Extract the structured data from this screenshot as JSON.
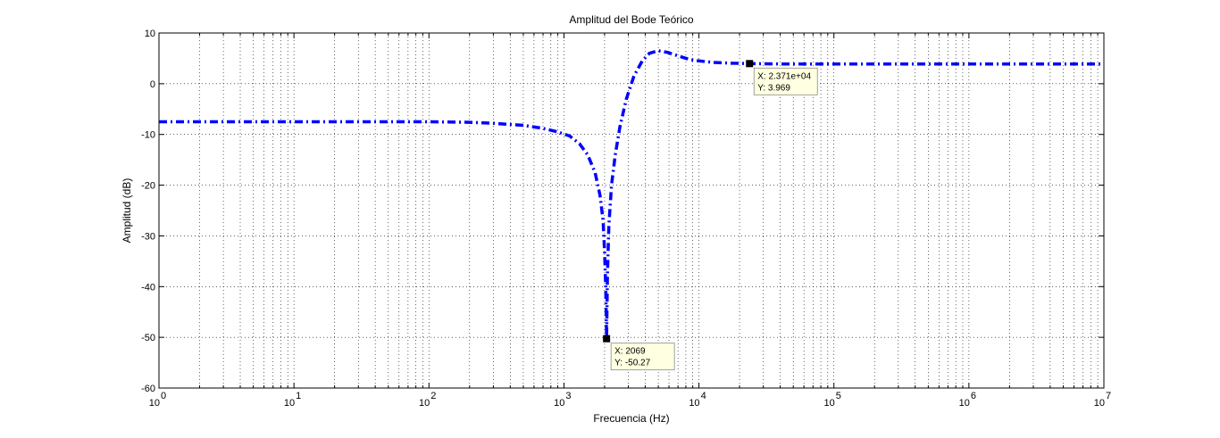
{
  "chart_data": {
    "type": "line",
    "title": "Amplitud del Bode Teórico",
    "xlabel": "Frecuencia (Hz)",
    "ylabel": "Amplitud (dB)",
    "x_scale": "log",
    "xlim": [
      1,
      10000000
    ],
    "ylim": [
      -60,
      10
    ],
    "grid": true,
    "x_ticks": [
      {
        "value": 1,
        "base": "10",
        "exp": "0"
      },
      {
        "value": 10,
        "base": "10",
        "exp": "1"
      },
      {
        "value": 100,
        "base": "10",
        "exp": "2"
      },
      {
        "value": 1000,
        "base": "10",
        "exp": "3"
      },
      {
        "value": 10000,
        "base": "10",
        "exp": "4"
      },
      {
        "value": 100000,
        "base": "10",
        "exp": "5"
      },
      {
        "value": 1000000,
        "base": "10",
        "exp": "6"
      },
      {
        "value": 10000000,
        "base": "10",
        "exp": "7"
      }
    ],
    "y_ticks": [
      {
        "value": 10,
        "label": "10"
      },
      {
        "value": 0,
        "label": "0"
      },
      {
        "value": -10,
        "label": "-10"
      },
      {
        "value": -20,
        "label": "-20"
      },
      {
        "value": -30,
        "label": "-30"
      },
      {
        "value": -40,
        "label": "-40"
      },
      {
        "value": -50,
        "label": "-50"
      },
      {
        "value": -60,
        "label": "-60"
      }
    ],
    "series": [
      {
        "color": "#0000ff",
        "line_style": "dash-dot",
        "x": [
          1,
          10,
          100,
          200,
          300,
          500,
          700,
          900,
          1100,
          1300,
          1500,
          1700,
          1850,
          1950,
          2000,
          2040,
          2069,
          2100,
          2150,
          2250,
          2400,
          2600,
          2900,
          3300,
          3800,
          4300,
          5000,
          5800,
          7000,
          8500,
          10000,
          13000,
          17000,
          23710,
          40000,
          100000,
          1000000,
          10000000
        ],
        "y": [
          -7.5,
          -7.5,
          -7.5,
          -7.6,
          -7.8,
          -8.2,
          -8.8,
          -9.5,
          -10.3,
          -11.8,
          -14.0,
          -17.5,
          -22.0,
          -27.0,
          -33.0,
          -40.0,
          -50.27,
          -38.0,
          -28.0,
          -20.0,
          -14.0,
          -8.5,
          -3.0,
          1.5,
          4.5,
          6.0,
          6.5,
          6.2,
          5.5,
          4.8,
          4.5,
          4.2,
          4.05,
          3.969,
          3.9,
          3.9,
          3.9,
          3.9
        ]
      }
    ],
    "datatips": [
      {
        "x": 23710,
        "y": 3.969,
        "x_label": "X: 2.371e+04",
        "y_label": "Y: 3.969"
      },
      {
        "x": 2069,
        "y": -50.27,
        "x_label": "X: 2069",
        "y_label": "Y: -50.27"
      }
    ]
  }
}
